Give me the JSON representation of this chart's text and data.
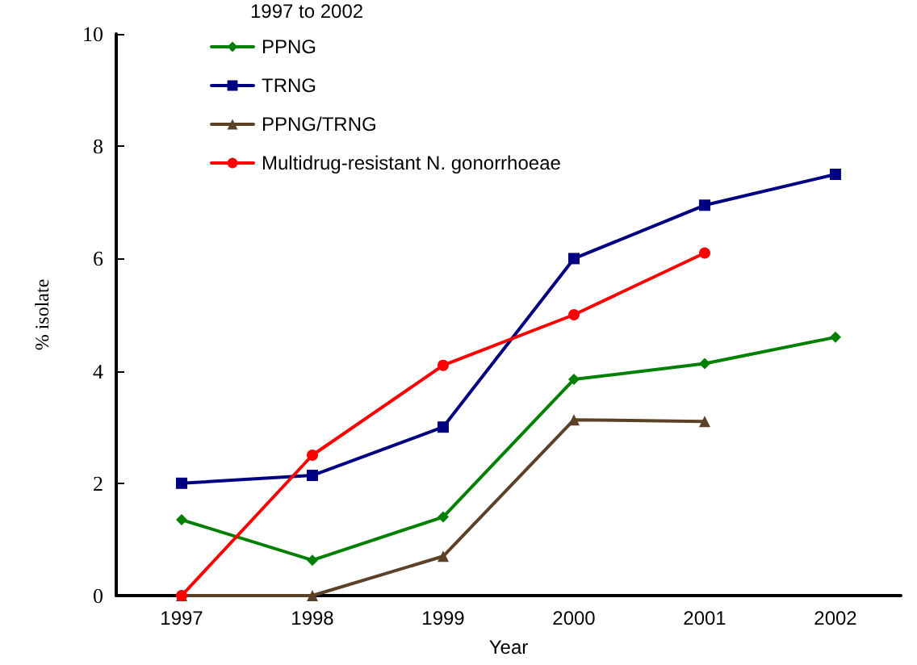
{
  "chart_data": {
    "type": "line",
    "title": "1997 to 2002",
    "xlabel": "Year",
    "ylabel": "% isolate",
    "categories": [
      "1997",
      "1998",
      "1999",
      "2000",
      "2001",
      "2002"
    ],
    "series": [
      {
        "name": "PPNG",
        "color": "#008000",
        "marker": "diamond",
        "values": [
          1.35,
          0.63,
          1.4,
          3.85,
          4.13,
          4.6
        ]
      },
      {
        "name": "TRNG",
        "color": "#000080",
        "marker": "square",
        "values": [
          2.0,
          2.14,
          3.0,
          6.0,
          6.95,
          7.5
        ]
      },
      {
        "name": "PPNG/TRNG",
        "color": "#5c4129",
        "marker": "triangle",
        "values": [
          0,
          0,
          0.7,
          3.13,
          3.1,
          null
        ]
      },
      {
        "name": "Multidrug-resistant N. gonorrhoeae",
        "color": "#ff0000",
        "marker": "circle",
        "values": [
          0,
          2.5,
          4.1,
          5.0,
          6.1,
          null
        ]
      }
    ],
    "ylim": [
      0,
      10
    ],
    "yticks": [
      0,
      2,
      4,
      6,
      8,
      10
    ],
    "grid": false,
    "legend": "top left"
  }
}
